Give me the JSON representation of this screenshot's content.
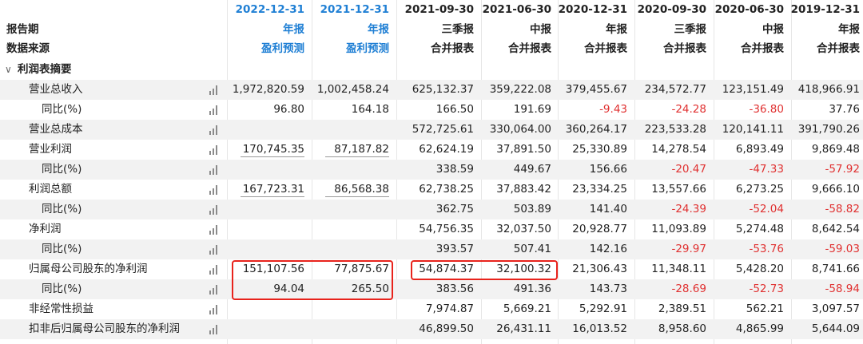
{
  "header": {
    "row_labels": [
      "报告期",
      "数据来源"
    ],
    "periods": [
      "2022-12-31",
      "2021-12-31",
      "2021-09-30",
      "2021-06-30",
      "2020-12-31",
      "2020-09-30",
      "2020-06-30",
      "2019-12-31"
    ],
    "report_types": [
      "年报",
      "年报",
      "三季报",
      "中报",
      "年报",
      "三季报",
      "中报",
      "年报"
    ],
    "sources": [
      "盈利预测",
      "盈利预测",
      "合并报表",
      "合并报表",
      "合并报表",
      "合并报表",
      "合并报表",
      "合并报表"
    ]
  },
  "section": {
    "title": "利润表摘要",
    "arrow": "∨"
  },
  "rows": [
    {
      "label": "营业总收入",
      "indent": false,
      "values": [
        "1,972,820.59",
        "1,002,458.24",
        "625,132.37",
        "359,222.08",
        "379,455.67",
        "234,572.77",
        "123,151.49",
        "418,966.91"
      ]
    },
    {
      "label": "同比(%)",
      "indent": true,
      "values": [
        "96.80",
        "164.18",
        "166.50",
        "191.69",
        "-9.43",
        "-24.28",
        "-36.80",
        "37.76"
      ]
    },
    {
      "label": "营业总成本",
      "indent": false,
      "values": [
        "",
        "",
        "572,725.61",
        "330,064.00",
        "360,264.17",
        "223,533.28",
        "120,141.11",
        "391,790.26"
      ]
    },
    {
      "label": "营业利润",
      "indent": false,
      "values": [
        "170,745.35",
        "87,187.82",
        "62,624.19",
        "37,891.50",
        "25,330.89",
        "14,278.54",
        "6,893.49",
        "9,869.48"
      ]
    },
    {
      "label": "同比(%)",
      "indent": true,
      "values": [
        "",
        "",
        "338.59",
        "449.67",
        "156.66",
        "-20.47",
        "-47.33",
        "-57.92"
      ]
    },
    {
      "label": "利润总额",
      "indent": false,
      "values": [
        "167,723.31",
        "86,568.38",
        "62,738.25",
        "37,883.42",
        "23,334.25",
        "13,557.66",
        "6,273.25",
        "9,666.10"
      ]
    },
    {
      "label": "同比(%)",
      "indent": true,
      "values": [
        "",
        "",
        "362.75",
        "503.89",
        "141.40",
        "-24.39",
        "-52.04",
        "-58.82"
      ]
    },
    {
      "label": "净利润",
      "indent": false,
      "values": [
        "",
        "",
        "54,756.35",
        "32,037.50",
        "20,928.77",
        "11,093.89",
        "5,274.48",
        "8,642.54"
      ]
    },
    {
      "label": "同比(%)",
      "indent": true,
      "values": [
        "",
        "",
        "393.57",
        "507.41",
        "142.16",
        "-29.97",
        "-53.76",
        "-59.03"
      ]
    },
    {
      "label": "归属母公司股东的净利润",
      "indent": false,
      "values": [
        "151,107.56",
        "77,875.67",
        "54,874.37",
        "32,100.32",
        "21,306.43",
        "11,348.11",
        "5,428.20",
        "8,741.66"
      ]
    },
    {
      "label": "同比(%)",
      "indent": true,
      "values": [
        "94.04",
        "265.50",
        "383.56",
        "491.36",
        "143.73",
        "-28.69",
        "-52.73",
        "-58.94"
      ]
    },
    {
      "label": "非经常性损益",
      "indent": false,
      "values": [
        "",
        "",
        "7,974.87",
        "5,669.21",
        "5,292.91",
        "2,389.51",
        "562.21",
        "3,097.57"
      ]
    },
    {
      "label": "扣非后归属母公司股东的净利润",
      "indent": false,
      "values": [
        "",
        "",
        "46,899.50",
        "26,431.11",
        "16,013.52",
        "8,958.60",
        "4,865.99",
        "5,644.09"
      ]
    }
  ],
  "colors": {
    "accent": "#1f7fd4",
    "negative": "#e03030",
    "highlight": "#e8231c",
    "stripe": "#f2f2f2"
  }
}
